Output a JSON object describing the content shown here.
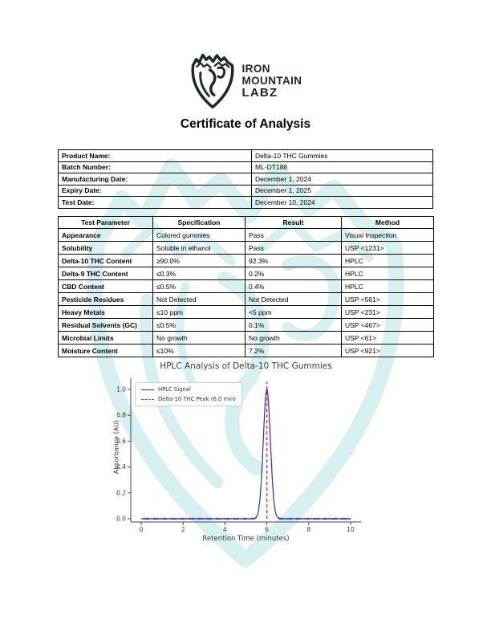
{
  "logo": {
    "line1": "IRON",
    "line2": "MOUNTAIN",
    "line3": "LABZ",
    "icon": "mountain-shield-goat-icon",
    "color": "#1f2727"
  },
  "title": "Certificate of Analysis",
  "product_info": {
    "rows": [
      {
        "label": "Product Name:",
        "value": "Delta-10 THC Gummies"
      },
      {
        "label": "Batch Number:",
        "value": "ML-DT188"
      },
      {
        "label": "Manufacturing Date:",
        "value": "December 1, 2024"
      },
      {
        "label": "Expiry Date:",
        "value": "December 1, 2025"
      },
      {
        "label": "Test Date:",
        "value": "December 10, 2024"
      }
    ]
  },
  "results_table": {
    "headers": [
      "Test Parameter",
      "Specification",
      "Result",
      "Method"
    ],
    "rows": [
      [
        "Appearance",
        "Colored gummies",
        "Pass",
        "Visual Inspection"
      ],
      [
        "Solubility",
        "Soluble in ethanol",
        "Pass",
        "USP <1231>"
      ],
      [
        "Delta-10 THC Content",
        "≥90.0%",
        "92.3%",
        "HPLC"
      ],
      [
        "Delta-9 THC Content",
        "≤0.3%",
        "0.2%",
        "HPLC"
      ],
      [
        "CBD Content",
        "≤0.5%",
        "0.4%",
        "HPLC"
      ],
      [
        "Pesticide Residues",
        "Not Detected",
        "Not Detected",
        "USP <561>"
      ],
      [
        "Heavy Metals",
        "≤10 ppm",
        "<5 ppm",
        "USP <231>"
      ],
      [
        "Residual Solvents (GC)",
        "≤0.5%",
        "0.1%",
        "USP <467>"
      ],
      [
        "Microbial Limits",
        "No growth",
        "No growth",
        "USP <61>"
      ],
      [
        "Moisture Content",
        "≤10%",
        "7.2%",
        "USP <921>"
      ]
    ]
  },
  "chart_data": {
    "type": "line",
    "title": "HPLC Analysis of Delta-10 THC Gummies",
    "xlabel": "Retention Time (minutes)",
    "ylabel": "Absorbance (AU)",
    "x_ticks": [
      0,
      2,
      4,
      6,
      8,
      10
    ],
    "y_ticks": [
      0.0,
      0.2,
      0.4,
      0.6,
      0.8,
      1.0
    ],
    "xlim": [
      -0.5,
      10.5
    ],
    "ylim": [
      -0.025,
      1.087
    ],
    "grid": false,
    "legend_position": "upper-left",
    "series": [
      {
        "name": "HPLC Signal",
        "color": "#2b2bd5",
        "style": "solid",
        "baseline": 0.0,
        "noise_amplitude": 0.004,
        "peak": {
          "center": 6.0,
          "height": 1.0,
          "sigma": 0.17
        }
      }
    ],
    "marker": {
      "label": "Delta-10 THC Peak (6.0 min)",
      "x": 6.0,
      "y_top": 1.06,
      "color": "#e03535",
      "style": "dashed"
    }
  },
  "colors": {
    "watermark_teal": "#9fe0da",
    "logo_dark": "#1f2727",
    "axis_text": "#3b3b3b",
    "table_border": "#000000"
  }
}
